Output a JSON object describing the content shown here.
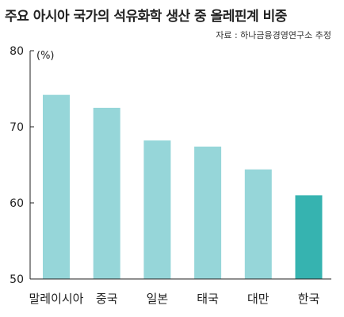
{
  "title": "주요 아시아 국가의 석유화학 생산 중 올레핀계 비중",
  "source": "자료 : 하나금융경영연구소 추정",
  "colors": {
    "bar": "#96d6d9",
    "highlight": "#36b3b0",
    "axis": "#222222"
  },
  "chart_data": {
    "type": "bar",
    "title": "주요 아시아 국가의 석유화학 생산 중 올레핀계 비중",
    "unit": "(%)",
    "categories": [
      "말레이시아",
      "중국",
      "일본",
      "태국",
      "대만",
      "한국"
    ],
    "values": [
      74.2,
      72.5,
      68.2,
      67.4,
      64.4,
      61.0
    ],
    "highlight_category": "한국",
    "ylim": [
      50,
      80
    ],
    "yticks": [
      50,
      60,
      70,
      80
    ],
    "grid": false,
    "legend": "none"
  }
}
